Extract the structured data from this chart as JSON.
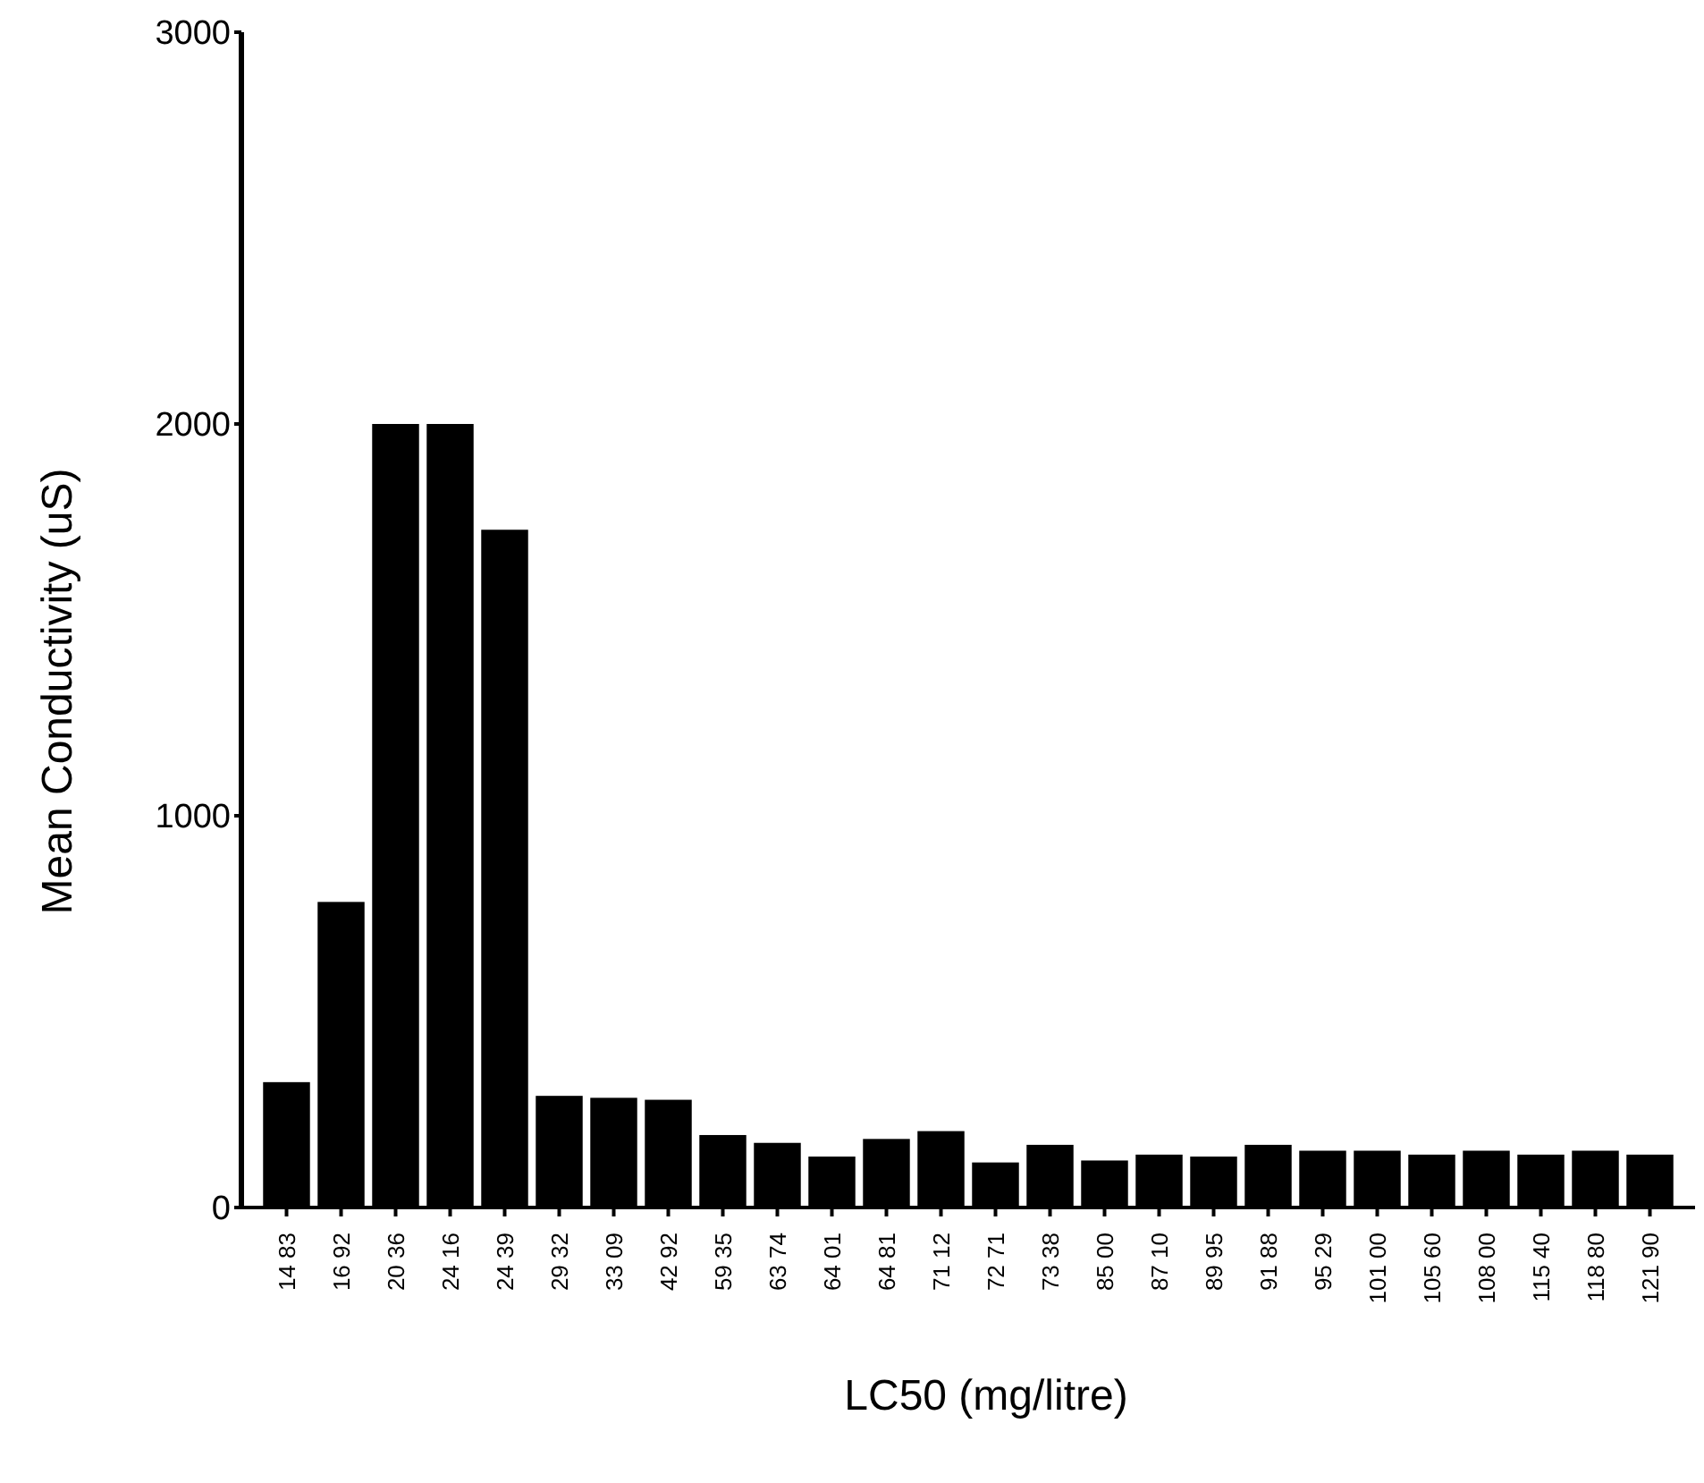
{
  "chart_data": {
    "type": "bar",
    "xlabel": "LC50 (mg/litre)",
    "ylabel": "Mean Conductivity (uS)",
    "categories": [
      "14 83",
      "16 92",
      "20 36",
      "24 16",
      "24 39",
      "29 32",
      "33 09",
      "42 92",
      "59 35",
      "63 74",
      "64 01",
      "64 81",
      "71 12",
      "72 71",
      "73 38",
      "85 00",
      "87 10",
      "89 95",
      "91 88",
      "95 29",
      "101 00",
      "105 60",
      "108 00",
      "115 40",
      "118 80",
      "121 90"
    ],
    "values": [
      320,
      780,
      2000,
      2000,
      1730,
      285,
      280,
      275,
      185,
      165,
      130,
      175,
      195,
      115,
      160,
      120,
      135,
      130,
      160,
      145,
      145,
      135,
      145,
      135,
      145,
      135
    ],
    "color": "#000000",
    "ylim": [
      0,
      3000
    ],
    "yticks": [
      0,
      1000,
      2000,
      3000
    ],
    "grid": false
  }
}
